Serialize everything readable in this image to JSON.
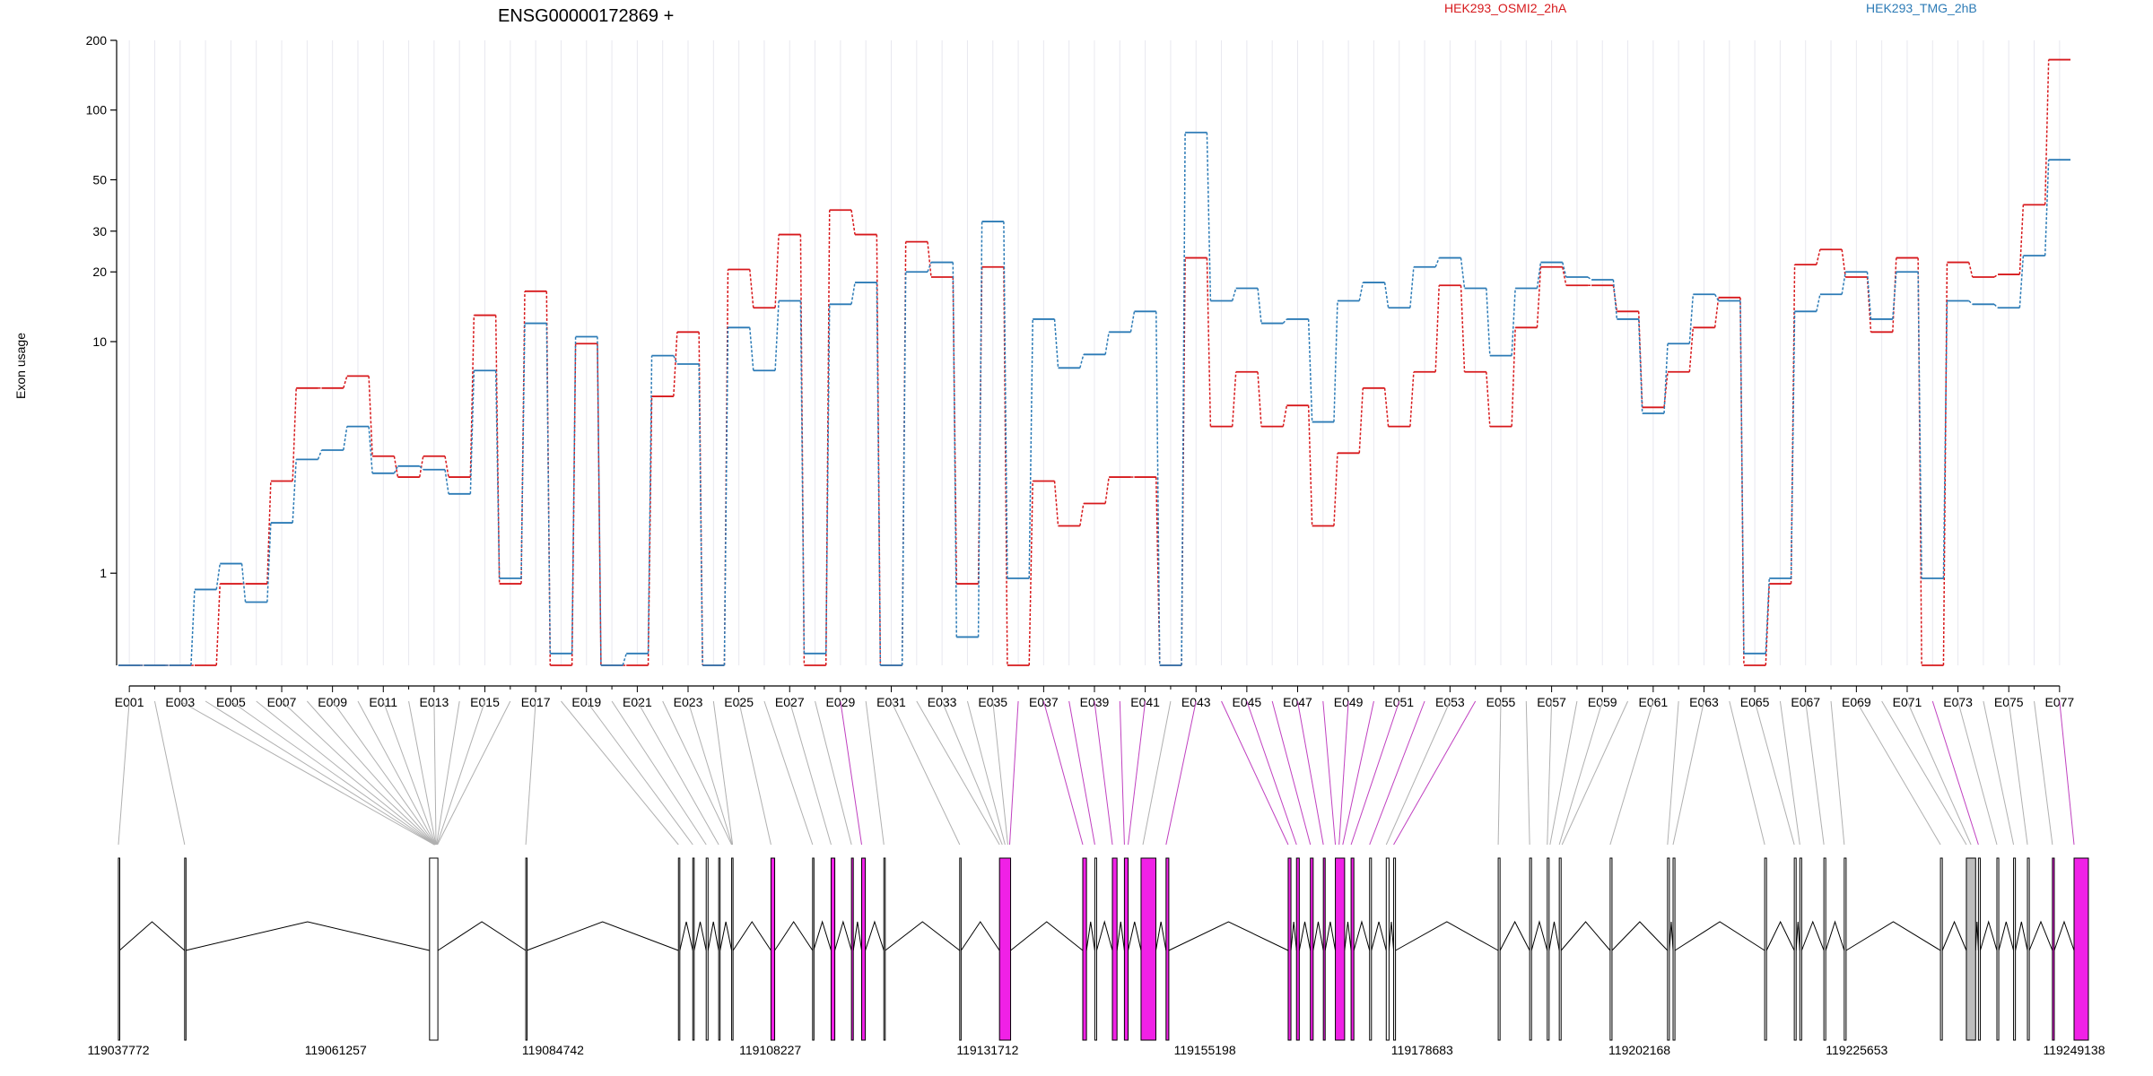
{
  "chart_data": {
    "type": "line",
    "title": "ENSG00000172869 +",
    "ylabel": "Exon usage",
    "xlabel": "",
    "yscale": "log",
    "ylim": [
      0.4,
      200
    ],
    "yticks": [
      1,
      10,
      20,
      30,
      50,
      100,
      200
    ],
    "grid": "vertical",
    "legend_position": "top",
    "exon_labels": [
      "E001",
      "E003",
      "E005",
      "E007",
      "E009",
      "E011",
      "E013",
      "E015",
      "E017",
      "E019",
      "E021",
      "E023",
      "E025",
      "E027",
      "E029",
      "E031",
      "E033",
      "E035",
      "E037",
      "E039",
      "E041",
      "E043",
      "E045",
      "E047",
      "E049",
      "E051",
      "E053",
      "E055",
      "E057",
      "E059",
      "E061",
      "E063",
      "E065",
      "E067",
      "E069",
      "E071",
      "E073",
      "E075",
      "E077"
    ],
    "x": [
      "E001",
      "E002",
      "E003",
      "E004",
      "E005",
      "E006",
      "E007",
      "E008",
      "E009",
      "E010",
      "E011",
      "E012",
      "E013",
      "E014",
      "E015",
      "E016",
      "E017",
      "E018",
      "E019",
      "E020",
      "E021",
      "E022",
      "E023",
      "E024",
      "E025",
      "E026",
      "E027",
      "E028",
      "E029",
      "E030",
      "E031",
      "E032",
      "E033",
      "E034",
      "E035",
      "E036",
      "E037",
      "E038",
      "E039",
      "E040",
      "E041",
      "E042",
      "E043",
      "E044",
      "E045",
      "E046",
      "E047",
      "E048",
      "E049",
      "E050",
      "E051",
      "E052",
      "E053",
      "E054",
      "E055",
      "E056",
      "E057",
      "E058",
      "E059",
      "E060",
      "E061",
      "E062",
      "E063",
      "E064",
      "E065",
      "E066",
      "E067",
      "E068",
      "E069",
      "E070",
      "E071",
      "E072",
      "E073",
      "E074",
      "E075",
      "E076",
      "E077"
    ],
    "series": [
      {
        "name": "HEK293_OSMI2_2hA",
        "color": "#d7191c",
        "values": [
          0.4,
          0.4,
          0.4,
          0.4,
          0.9,
          0.9,
          2.5,
          6.3,
          6.3,
          7.1,
          3.2,
          2.6,
          3.2,
          2.6,
          13,
          0.9,
          16.5,
          0.4,
          9.8,
          0.4,
          0.4,
          5.8,
          11,
          0.4,
          20.5,
          14,
          29,
          0.4,
          37,
          29,
          0.4,
          27,
          19,
          0.9,
          21,
          0.4,
          2.5,
          1.6,
          2.0,
          2.6,
          2.6,
          0.4,
          23,
          4.3,
          7.4,
          4.3,
          5.3,
          1.6,
          3.3,
          6.3,
          4.3,
          7.4,
          17.5,
          7.4,
          4.3,
          11.5,
          21,
          17.5,
          17.5,
          13.5,
          5.2,
          7.4,
          11.5,
          15.5,
          0.4,
          0.9,
          21.5,
          25,
          19,
          11,
          23,
          0.4,
          22,
          19,
          19.5,
          39,
          165
        ]
      },
      {
        "name": "HEK293_TMG_2hB",
        "color": "#2c7bb6",
        "values": [
          0.4,
          0.4,
          0.4,
          0.85,
          1.1,
          0.75,
          1.65,
          3.1,
          3.4,
          4.3,
          2.7,
          2.9,
          2.8,
          2.2,
          7.5,
          0.95,
          12,
          0.45,
          10.5,
          0.4,
          0.45,
          8.7,
          8.0,
          0.4,
          11.5,
          7.5,
          15,
          0.45,
          14.5,
          18,
          0.4,
          20,
          22,
          0.53,
          33,
          0.95,
          12.5,
          7.7,
          8.8,
          11,
          13.5,
          0.4,
          80,
          15,
          17,
          12,
          12.5,
          4.5,
          15,
          18,
          14,
          21,
          23,
          17,
          8.7,
          17,
          22,
          19,
          18.5,
          12.5,
          4.9,
          9.8,
          16,
          15,
          0.45,
          0.95,
          13.5,
          16,
          20,
          12.5,
          20,
          0.95,
          15,
          14.5,
          14,
          23.5,
          61
        ]
      }
    ],
    "gene_coord_labels": [
      "119037772",
      "119061257",
      "119084742",
      "119108227",
      "119131712",
      "119155198",
      "119178683",
      "119202168",
      "119225653",
      "119249138"
    ],
    "gene_range": [
      119037772,
      119249138
    ],
    "exon_highlight_color": "#f021e6",
    "exon_map_colors": {
      "normal": "#b0b0b0",
      "highlight": "#c040c0"
    },
    "exon_structure": [
      {
        "start": 119037772,
        "end": 119037885,
        "type": "normal"
      },
      {
        "start": 119044930,
        "end": 119045030,
        "type": "normal"
      },
      {
        "start": 119071400,
        "end": 119072300,
        "type": "normal"
      },
      {
        "start": 119081800,
        "end": 119081900,
        "type": "normal"
      },
      {
        "start": 119098300,
        "end": 119098450,
        "type": "normal"
      },
      {
        "start": 119099850,
        "end": 119100000,
        "type": "normal"
      },
      {
        "start": 119101300,
        "end": 119101500,
        "type": "normal"
      },
      {
        "start": 119102650,
        "end": 119102800,
        "type": "normal"
      },
      {
        "start": 119104050,
        "end": 119104200,
        "type": "normal"
      },
      {
        "start": 119108300,
        "end": 119108700,
        "type": "highlight"
      },
      {
        "start": 119112800,
        "end": 119112900,
        "type": "normal"
      },
      {
        "start": 119114800,
        "end": 119115200,
        "type": "highlight"
      },
      {
        "start": 119117000,
        "end": 119117200,
        "type": "highlight"
      },
      {
        "start": 119118100,
        "end": 119118500,
        "type": "highlight"
      },
      {
        "start": 119120500,
        "end": 119120650,
        "type": "normal"
      },
      {
        "start": 119128700,
        "end": 119128850,
        "type": "normal"
      },
      {
        "start": 119133000,
        "end": 119134200,
        "type": "highlight"
      },
      {
        "start": 119142000,
        "end": 119142400,
        "type": "highlight"
      },
      {
        "start": 119143300,
        "end": 119143500,
        "type": "normal"
      },
      {
        "start": 119145200,
        "end": 119145700,
        "type": "highlight"
      },
      {
        "start": 119146500,
        "end": 119146900,
        "type": "highlight"
      },
      {
        "start": 119148300,
        "end": 119149900,
        "type": "highlight"
      },
      {
        "start": 119151000,
        "end": 119151300,
        "type": "highlight"
      },
      {
        "start": 119164200,
        "end": 119164500,
        "type": "highlight"
      },
      {
        "start": 119165100,
        "end": 119165400,
        "type": "highlight"
      },
      {
        "start": 119166600,
        "end": 119166900,
        "type": "highlight"
      },
      {
        "start": 119168000,
        "end": 119168200,
        "type": "highlight"
      },
      {
        "start": 119169300,
        "end": 119170300,
        "type": "highlight"
      },
      {
        "start": 119171000,
        "end": 119171300,
        "type": "highlight"
      },
      {
        "start": 119173000,
        "end": 119173200,
        "type": "normal"
      },
      {
        "start": 119174800,
        "end": 119175100,
        "type": "normal"
      },
      {
        "start": 119175600,
        "end": 119175800,
        "type": "normal"
      },
      {
        "start": 119186900,
        "end": 119187100,
        "type": "normal"
      },
      {
        "start": 119190300,
        "end": 119190500,
        "type": "normal"
      },
      {
        "start": 119192200,
        "end": 119192400,
        "type": "normal"
      },
      {
        "start": 119193500,
        "end": 119193700,
        "type": "normal"
      },
      {
        "start": 119199000,
        "end": 119199200,
        "type": "normal"
      },
      {
        "start": 119205200,
        "end": 119205400,
        "type": "normal"
      },
      {
        "start": 119205800,
        "end": 119206000,
        "type": "normal"
      },
      {
        "start": 119215700,
        "end": 119215900,
        "type": "normal"
      },
      {
        "start": 119218900,
        "end": 119219100,
        "type": "normal"
      },
      {
        "start": 119219500,
        "end": 119219700,
        "type": "normal"
      },
      {
        "start": 119222100,
        "end": 119222300,
        "type": "normal"
      },
      {
        "start": 119224300,
        "end": 119224500,
        "type": "normal"
      },
      {
        "start": 119234700,
        "end": 119234900,
        "type": "normal"
      },
      {
        "start": 119237500,
        "end": 119238500,
        "type": "gray"
      },
      {
        "start": 119238800,
        "end": 119239000,
        "type": "normal"
      },
      {
        "start": 119240800,
        "end": 119241000,
        "type": "normal"
      },
      {
        "start": 119242600,
        "end": 119242800,
        "type": "normal"
      },
      {
        "start": 119244100,
        "end": 119244300,
        "type": "normal"
      },
      {
        "start": 119246800,
        "end": 119247000,
        "type": "highlight"
      },
      {
        "start": 119249138,
        "end": 119251400,
        "type": "highlight"
      }
    ],
    "exon_genomic_pos": [
      119037772,
      119044930,
      119071900,
      119071920,
      119071940,
      119071960,
      119071980,
      119072000,
      119072020,
      119072040,
      119072060,
      119072080,
      119072100,
      119072150,
      119072200,
      119072250,
      119081800,
      119098300,
      119099850,
      119101300,
      119102650,
      119104050,
      119104100,
      119104150,
      119108300,
      119112800,
      119114800,
      119117000,
      119118100,
      119120500,
      119128700,
      119133000,
      119133300,
      119133600,
      119133900,
      119134100,
      119142000,
      119143300,
      119145200,
      119146500,
      119146900,
      119148500,
      119151000,
      119164200,
      119165100,
      119166600,
      119168000,
      119169300,
      119169700,
      119170100,
      119171000,
      119173000,
      119174800,
      119175600,
      119186900,
      119190300,
      119192200,
      119192500,
      119193500,
      119193800,
      119199000,
      119205200,
      119205800,
      119215700,
      119218900,
      119219500,
      119222100,
      119224300,
      119234700,
      119237500,
      119238000,
      119238800,
      119240800,
      119242600,
      119244100,
      119246800,
      119249138
    ]
  }
}
